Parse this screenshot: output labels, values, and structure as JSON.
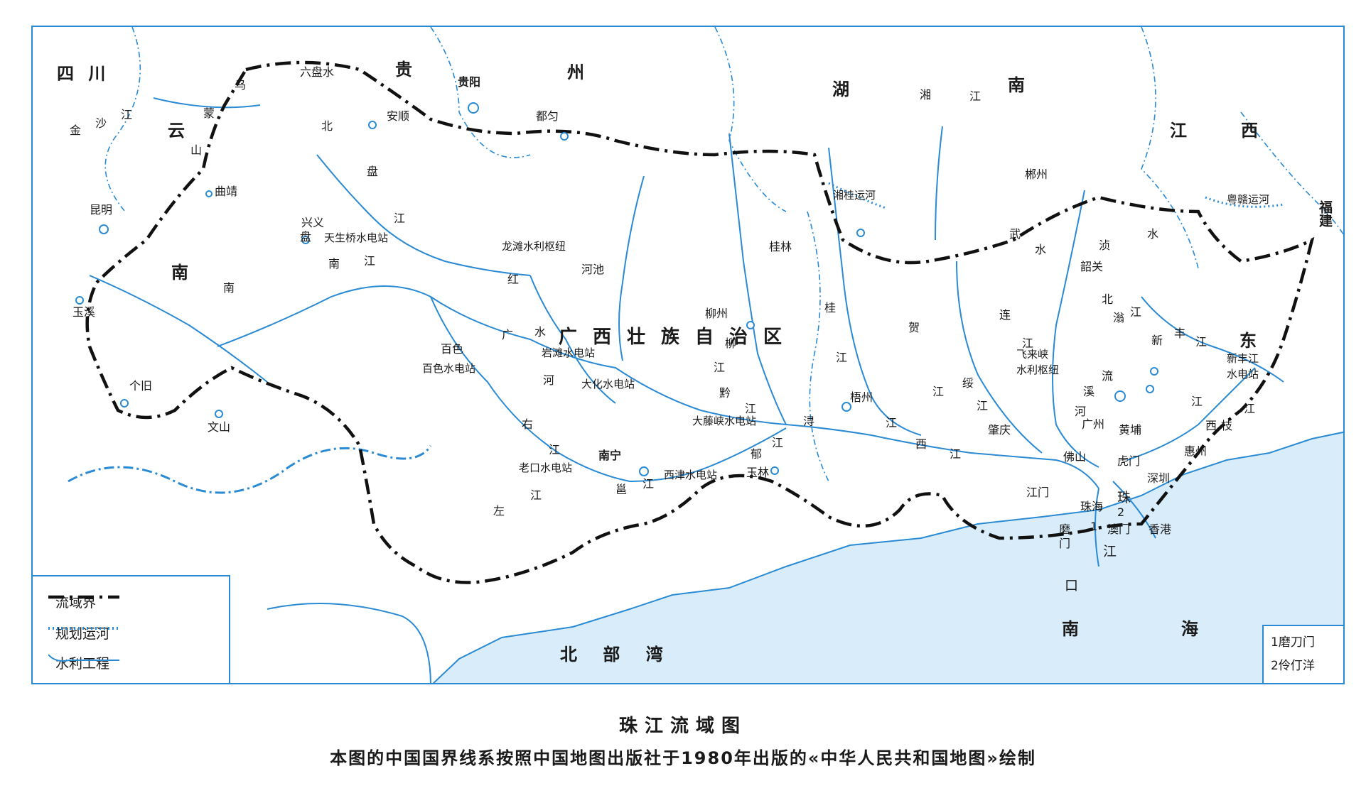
{
  "colors": {
    "frame": "#2a8ad4",
    "water": "#2a8ad4",
    "sea": "#d9ecf9",
    "boundary": "#111111"
  },
  "provinces": [
    {
      "id": "sichuan",
      "text": "四 川"
    },
    {
      "id": "yun",
      "text": "云"
    },
    {
      "id": "nan-yn",
      "text": "南"
    },
    {
      "id": "gui",
      "text": "贵"
    },
    {
      "id": "zhou",
      "text": "州"
    },
    {
      "id": "hu",
      "text": "湖"
    },
    {
      "id": "nan-hn",
      "text": "南"
    },
    {
      "id": "jiang-jx",
      "text": "江"
    },
    {
      "id": "xi-jx",
      "text": "西"
    },
    {
      "id": "fujian",
      "text": "福建"
    },
    {
      "id": "dong",
      "text": "东"
    }
  ],
  "region": "广西壮族自治区",
  "cities": [
    {
      "id": "kunming",
      "text": "昆明"
    },
    {
      "id": "qujing",
      "text": "曲靖"
    },
    {
      "id": "xingyi",
      "text": "兴义"
    },
    {
      "id": "yuxi",
      "text": "玉溪"
    },
    {
      "id": "gejiu",
      "text": "个旧"
    },
    {
      "id": "wenshan",
      "text": "文山"
    },
    {
      "id": "liupanshui",
      "text": "六盘水"
    },
    {
      "id": "anshun",
      "text": "安顺"
    },
    {
      "id": "guiyang",
      "text": "贵阳"
    },
    {
      "id": "duyun",
      "text": "都匀"
    },
    {
      "id": "hechi",
      "text": "河池"
    },
    {
      "id": "baise",
      "text": "百色"
    },
    {
      "id": "liuzhou",
      "text": "柳州"
    },
    {
      "id": "guilin",
      "text": "桂林"
    },
    {
      "id": "nanning",
      "text": "南宁"
    },
    {
      "id": "yulin",
      "text": "玉林"
    },
    {
      "id": "wuzhou",
      "text": "梧州"
    },
    {
      "id": "chenzhou",
      "text": "郴州"
    },
    {
      "id": "shaoguan",
      "text": "韶关"
    },
    {
      "id": "guangzhou",
      "text": "广州"
    },
    {
      "id": "huangpu",
      "text": "黄埔"
    },
    {
      "id": "zhaoqing",
      "text": "肇庆"
    },
    {
      "id": "foshan",
      "text": "佛山"
    },
    {
      "id": "jiangmen",
      "text": "江门"
    },
    {
      "id": "zhuhai",
      "text": "珠海"
    },
    {
      "id": "aomen",
      "text": "澳门"
    },
    {
      "id": "xianggang",
      "text": "香港"
    },
    {
      "id": "shenzhen",
      "text": "深圳"
    },
    {
      "id": "huizhou",
      "text": "惠州"
    },
    {
      "id": "humen",
      "text": "虎门"
    }
  ],
  "rivers": [
    {
      "id": "jinsha-1",
      "text": "金"
    },
    {
      "id": "jinsha-2",
      "text": "沙"
    },
    {
      "id": "jinsha-3",
      "text": "江"
    },
    {
      "id": "wumeng-1",
      "text": "乌"
    },
    {
      "id": "wumeng-2",
      "text": "蒙"
    },
    {
      "id": "wumeng-3",
      "text": "山"
    },
    {
      "id": "beipan-1",
      "text": "北"
    },
    {
      "id": "beipan-2",
      "text": "盘"
    },
    {
      "id": "beipan-3",
      "text": "江"
    },
    {
      "id": "nanpan-1",
      "text": "南"
    },
    {
      "id": "nanpan-2",
      "text": "盘"
    },
    {
      "id": "nanpan-3",
      "text": "江"
    },
    {
      "id": "nanpan-4",
      "text": "南"
    },
    {
      "id": "hongshui-1",
      "text": "红"
    },
    {
      "id": "hongshui-2",
      "text": "水"
    },
    {
      "id": "hongshui-3",
      "text": "河"
    },
    {
      "id": "guang",
      "text": "广"
    },
    {
      "id": "liu-1",
      "text": "柳"
    },
    {
      "id": "liu-2",
      "text": "江"
    },
    {
      "id": "qian-1",
      "text": "黔"
    },
    {
      "id": "qian-2",
      "text": "江"
    },
    {
      "id": "xun-1",
      "text": "浔"
    },
    {
      "id": "gui-1",
      "text": "桂"
    },
    {
      "id": "gui-2",
      "text": "江"
    },
    {
      "id": "he-1",
      "text": "贺"
    },
    {
      "id": "he-2",
      "text": "江"
    },
    {
      "id": "suijiang-1",
      "text": "绥"
    },
    {
      "id": "suijiang-2",
      "text": "江"
    },
    {
      "id": "lian-1",
      "text": "连"
    },
    {
      "id": "lian-2",
      "text": "江"
    },
    {
      "id": "xijiang-1",
      "text": "江"
    },
    {
      "id": "xijiang-2",
      "text": "西"
    },
    {
      "id": "xijiang-3",
      "text": "江"
    },
    {
      "id": "you-1",
      "text": "右"
    },
    {
      "id": "you-2",
      "text": "江"
    },
    {
      "id": "zuo-1",
      "text": "左"
    },
    {
      "id": "zuo-2",
      "text": "江"
    },
    {
      "id": "yong-1",
      "text": "邕"
    },
    {
      "id": "yong-2",
      "text": "江"
    },
    {
      "id": "yu-1",
      "text": "郁"
    },
    {
      "id": "yu-2",
      "text": "江"
    },
    {
      "id": "xiang-1",
      "text": "湘"
    },
    {
      "id": "xiang-2",
      "text": "江"
    },
    {
      "id": "wushui-1",
      "text": "武"
    },
    {
      "id": "wushui-2",
      "text": "水"
    },
    {
      "id": "wushui-3",
      "text": "浈"
    },
    {
      "id": "wushui-4",
      "text": "水"
    },
    {
      "id": "beijiang-1",
      "text": "北"
    },
    {
      "id": "beijiang-2",
      "text": "江"
    },
    {
      "id": "beijiang-3",
      "text": "滃"
    },
    {
      "id": "liuxi-1",
      "text": "流"
    },
    {
      "id": "liuxi-2",
      "text": "溪"
    },
    {
      "id": "liuxi-3",
      "text": "河"
    },
    {
      "id": "xinfeng-1",
      "text": "新"
    },
    {
      "id": "xinfeng-2",
      "text": "丰"
    },
    {
      "id": "xinfeng-3",
      "text": "江"
    },
    {
      "id": "dongjiang-1",
      "text": "江"
    },
    {
      "id": "xizhi-1",
      "text": "西"
    },
    {
      "id": "xizhi-2",
      "text": "枝"
    },
    {
      "id": "xizhi-3",
      "text": "江"
    },
    {
      "id": "zhujiang-1",
      "text": "珠"
    },
    {
      "id": "zhujiang-2",
      "text": "江"
    },
    {
      "id": "jiangkou-1",
      "text": "口"
    },
    {
      "id": "modaomen-1",
      "text": "磨"
    },
    {
      "id": "modaomen-2",
      "text": "门"
    },
    {
      "id": "estuary-1",
      "text": "1"
    },
    {
      "id": "estuary-2",
      "text": "2"
    }
  ],
  "projects": [
    {
      "id": "tianshengqiao",
      "text": "天生桥水电站"
    },
    {
      "id": "longtan",
      "text": "龙滩水利枢纽"
    },
    {
      "id": "yantan",
      "text": "岩滩水电站"
    },
    {
      "id": "dahua",
      "text": "大化水电站"
    },
    {
      "id": "baise-dam",
      "text": "百色水电站"
    },
    {
      "id": "datengxia",
      "text": "大藤峡水电站"
    },
    {
      "id": "laokou",
      "text": "老口水电站"
    },
    {
      "id": "xijin",
      "text": "西津水电站"
    },
    {
      "id": "feilaixia-1",
      "text": "飞来峡"
    },
    {
      "id": "feilaixia-2",
      "text": "水利枢纽"
    },
    {
      "id": "xinfengjiang-1",
      "text": "新丰江"
    },
    {
      "id": "xinfengjiang-2",
      "text": "水电站"
    },
    {
      "id": "xianggui",
      "text": "湘桂运河"
    },
    {
      "id": "yuegan",
      "text": "粤赣运河"
    }
  ],
  "seas": [
    {
      "id": "beibuwan",
      "text": "北 部 湾"
    },
    {
      "id": "nanhai-nan",
      "text": "南"
    },
    {
      "id": "nanhai-hai",
      "text": "海"
    }
  ],
  "legend": [
    {
      "id": "basin-boundary",
      "text": "流域界"
    },
    {
      "id": "planned-canal",
      "text": "规划运河"
    },
    {
      "id": "water-project",
      "text": "水利工程"
    }
  ],
  "strait_notes": [
    "1磨刀门",
    "2伶仃洋"
  ],
  "caption": {
    "title": "珠江流域图",
    "note": "本图的中国国界线系按照中国地图出版社于1980年出版的«中华人民共和国地图»绘制"
  }
}
